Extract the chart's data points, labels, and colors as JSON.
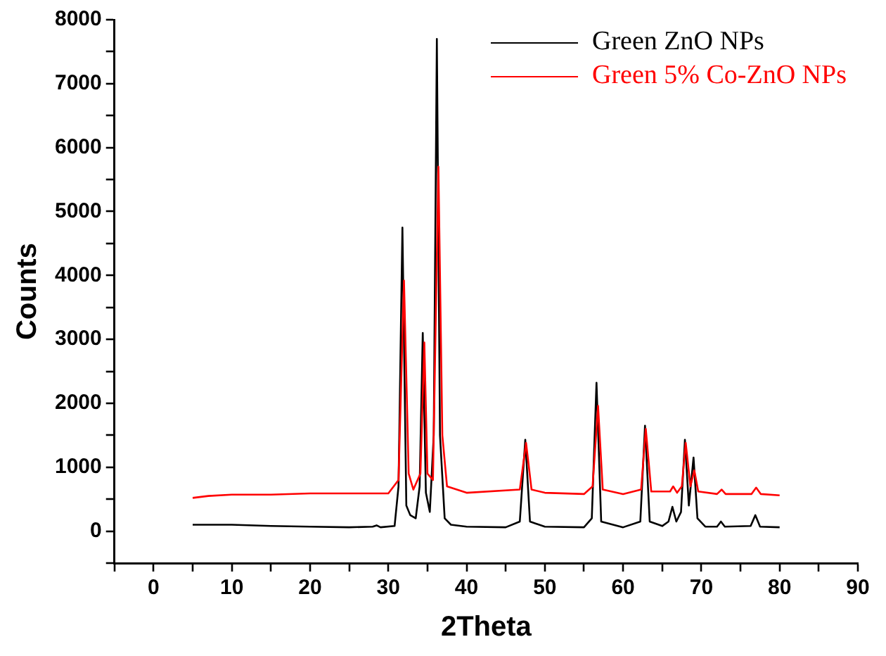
{
  "chart_data": {
    "type": "line",
    "xlabel": "2Theta",
    "ylabel": "Counts",
    "legend": "top right",
    "marker": "none",
    "line_style": "solid",
    "grid": false,
    "xlim": [
      -5,
      90
    ],
    "xticks": [
      {
        "value": -5,
        "label": null
      },
      0,
      {
        "value": 5,
        "label": null
      },
      10,
      {
        "value": 15,
        "label": null
      },
      20,
      {
        "value": 25,
        "label": null
      },
      30,
      {
        "value": 35,
        "label": null
      },
      40,
      {
        "value": 45,
        "label": null
      },
      50,
      {
        "value": 55,
        "label": null
      },
      60,
      {
        "value": 65,
        "label": null
      },
      70,
      {
        "value": 75,
        "label": null
      },
      80,
      {
        "value": 85,
        "label": null
      },
      90
    ],
    "ylim": [
      -500,
      8000
    ],
    "yticks": [
      {
        "value": -500,
        "label": null
      },
      0,
      {
        "value": 500,
        "label": null
      },
      1000,
      {
        "value": 1500,
        "label": null
      },
      2000,
      {
        "value": 2500,
        "label": null
      },
      3000,
      {
        "value": 3500,
        "label": null
      },
      4000,
      {
        "value": 4500,
        "label": null
      },
      5000,
      {
        "value": 5500,
        "label": null
      },
      6000,
      {
        "value": 6500,
        "label": null
      },
      7000,
      {
        "value": 7500,
        "label": null
      },
      8000
    ],
    "series": [
      {
        "name": "Green ZnO NPs",
        "color": "#000000",
        "x": [
          5,
          10,
          15,
          20,
          25,
          28,
          28.5,
          29,
          30.8,
          31.3,
          31.8,
          32.3,
          32.8,
          33.5,
          34.0,
          34.4,
          34.8,
          35.3,
          35.8,
          36.2,
          36.6,
          37.2,
          38,
          40,
          45,
          46.8,
          47.5,
          48.1,
          50,
          55,
          56.0,
          56.6,
          57.2,
          60,
          62.2,
          62.8,
          63.4,
          65,
          65.8,
          66.3,
          66.8,
          67.4,
          67.9,
          68.4,
          69.0,
          69.5,
          70.5,
          72.0,
          72.5,
          73.0,
          76.3,
          76.9,
          77.5,
          80
        ],
        "values": [
          100,
          100,
          80,
          70,
          60,
          70,
          90,
          60,
          80,
          700,
          4750,
          400,
          250,
          200,
          700,
          3100,
          600,
          300,
          1500,
          7700,
          1500,
          200,
          100,
          70,
          60,
          150,
          1430,
          150,
          70,
          60,
          200,
          2320,
          150,
          60,
          150,
          1650,
          150,
          80,
          150,
          380,
          150,
          300,
          1430,
          400,
          1150,
          200,
          70,
          70,
          150,
          70,
          80,
          250,
          70,
          60
        ]
      },
      {
        "name": "Green 5% Co-ZnO NPs",
        "color": "#ff0000",
        "x": [
          5,
          7,
          10,
          15,
          20,
          25,
          30,
          31.3,
          32.0,
          32.6,
          33.2,
          34.1,
          34.6,
          35.0,
          35.7,
          36.4,
          36.9,
          37.5,
          40,
          46.8,
          47.6,
          48.3,
          50,
          55,
          56.1,
          56.8,
          57.4,
          60,
          62.3,
          62.9,
          63.6,
          66,
          66.4,
          66.9,
          67.5,
          68.0,
          68.6,
          69.1,
          69.6,
          72,
          72.6,
          73.1,
          76.4,
          77.0,
          77.6,
          80
        ],
        "values": [
          520,
          550,
          570,
          570,
          590,
          590,
          590,
          800,
          3920,
          900,
          650,
          900,
          2950,
          900,
          800,
          5700,
          1500,
          700,
          600,
          650,
          1380,
          650,
          600,
          580,
          700,
          1960,
          650,
          580,
          650,
          1600,
          620,
          620,
          700,
          600,
          700,
          1380,
          700,
          950,
          620,
          580,
          650,
          580,
          580,
          680,
          580,
          560
        ]
      }
    ]
  }
}
